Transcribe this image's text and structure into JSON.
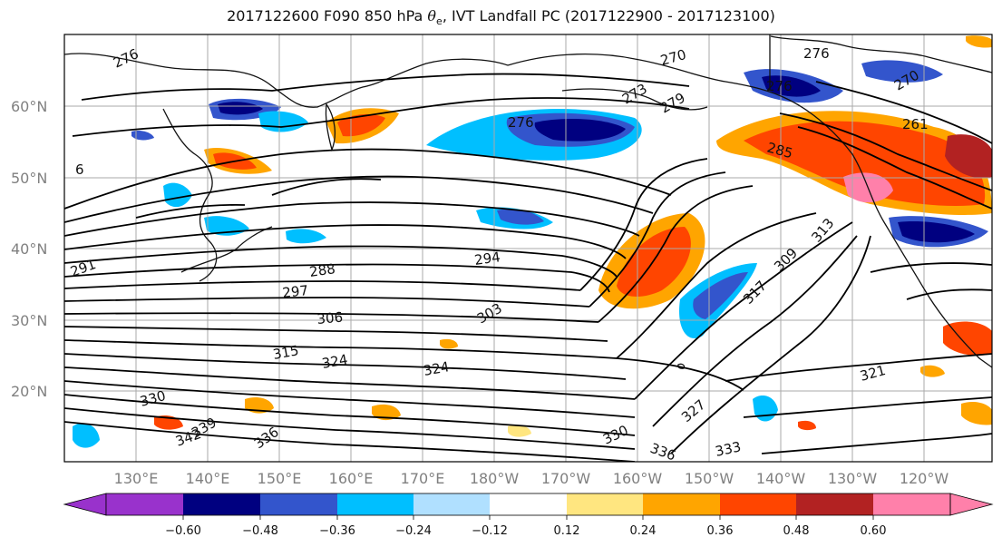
{
  "figure": {
    "title_prefix": "2017122600 F090 850 hPa ",
    "title_symbol": "θ",
    "title_symbol_sub": "e",
    "title_suffix": ", IVT Landfall PC (2017122900 - 2017123100)"
  },
  "map": {
    "lon_labels": [
      "130°E",
      "140°E",
      "150°E",
      "160°E",
      "170°E",
      "180°W",
      "170°W",
      "160°W",
      "150°W",
      "140°W",
      "130°W",
      "120°W"
    ],
    "lat_labels": [
      "60°N",
      "50°N",
      "40°N",
      "30°N",
      "20°N"
    ],
    "contour_labels": [
      "276",
      "276",
      "270",
      "276",
      "270",
      "273",
      "279",
      "276",
      "261",
      "285",
      "294",
      "288",
      "297",
      "306",
      "303",
      "317",
      "309",
      "313",
      "315",
      "324",
      "324",
      "330",
      "321",
      "327",
      "330",
      "336",
      "333",
      "342",
      "339",
      "336",
      "6",
      "291"
    ]
  },
  "colorbar": {
    "ticks": [
      "−0.60",
      "−0.48",
      "−0.36",
      "−0.24",
      "−0.12",
      "0.12",
      "0.24",
      "0.36",
      "0.48",
      "0.60"
    ],
    "colors": [
      "#9932CC",
      "#000080",
      "#3355CC",
      "#00BFFF",
      "#B0E0FF",
      "#FFFFFF",
      "#FFE680",
      "#FFA500",
      "#FF4500",
      "#B22222",
      "#FF80AA",
      "#FF80AA"
    ]
  }
}
